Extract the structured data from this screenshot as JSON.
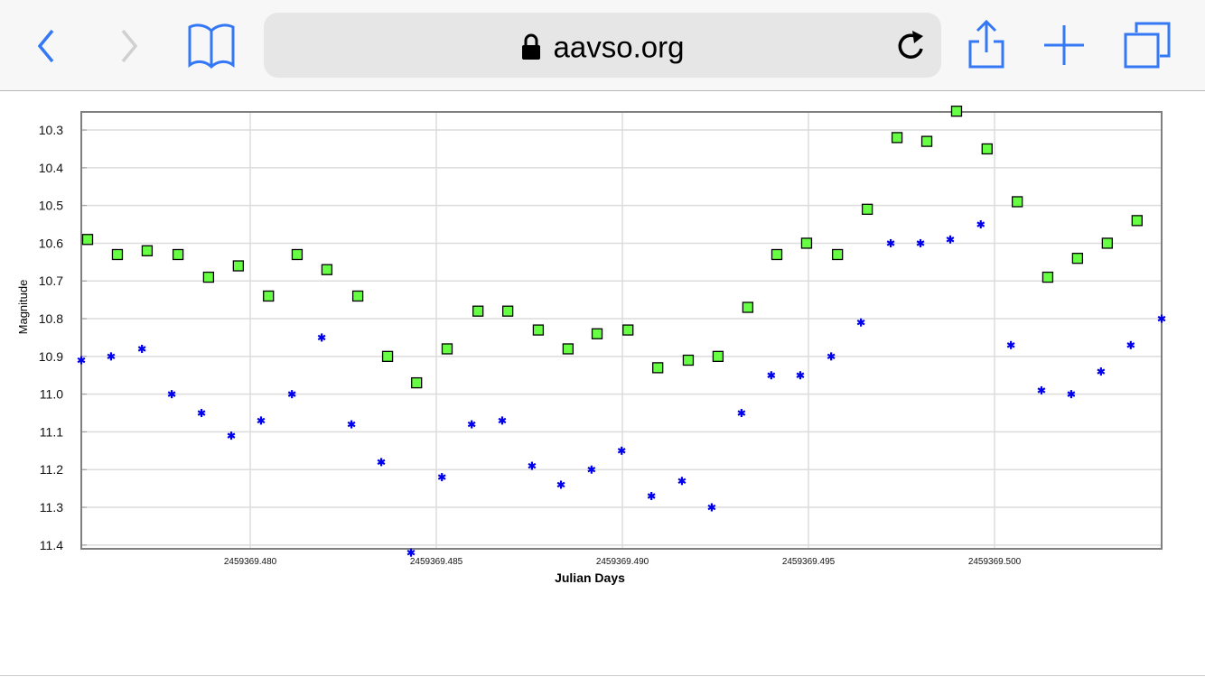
{
  "browser": {
    "url": "aavso.org",
    "icons": [
      "back-icon",
      "forward-icon",
      "bookmarks-icon",
      "lock-icon",
      "reload-icon",
      "share-icon",
      "new-tab-icon",
      "tabs-icon"
    ],
    "accent_color": "#3478f6"
  },
  "chart_data": {
    "type": "scatter",
    "title": "",
    "xlabel": "Julian Days",
    "ylabel": "Magnitude",
    "xlim": [
      2459369.47546,
      2459369.50449
    ],
    "ylim": [
      10.252,
      11.41
    ],
    "y_inverted": true,
    "grid": true,
    "xticks": [
      2459369.48,
      2459369.485,
      2459369.49,
      2459369.495,
      2459369.5
    ],
    "xtick_labels": [
      "2459369.480",
      "2459369.485",
      "2459369.490",
      "2459369.495",
      "2459369.500"
    ],
    "yticks": [
      10.3,
      10.4,
      10.5,
      10.6,
      10.7,
      10.8,
      10.9,
      11.0,
      11.1,
      11.2,
      11.3,
      11.4
    ],
    "ytick_labels": [
      "10.3",
      "10.4",
      "10.5",
      "10.6",
      "10.7",
      "10.8",
      "10.9",
      "11.0",
      "11.1",
      "11.2",
      "11.3",
      "11.4"
    ],
    "series": [
      {
        "marker": "square",
        "color": "#66ff44",
        "x": [
          2459369.47563,
          2459369.47643,
          2459369.47723,
          2459369.47806,
          2459369.47888,
          2459369.47968,
          2459369.48049,
          2459369.48126,
          2459369.48206,
          2459369.48289,
          2459369.48369,
          2459369.48447,
          2459369.48529,
          2459369.48612,
          2459369.48692,
          2459369.48774,
          2459369.48854,
          2459369.48932,
          2459369.49015,
          2459369.49095,
          2459369.49177,
          2459369.49257,
          2459369.49337,
          2459369.49415,
          2459369.49495,
          2459369.49578,
          2459369.49658,
          2459369.49738,
          2459369.49818,
          2459369.49898,
          2459369.4998,
          2459369.50061,
          2459369.50143,
          2459369.50223,
          2459369.50303,
          2459369.50383
        ],
        "y": [
          10.59,
          10.63,
          10.62,
          10.63,
          10.69,
          10.66,
          10.74,
          10.63,
          10.67,
          10.74,
          10.9,
          10.97,
          10.88,
          10.78,
          10.78,
          10.83,
          10.88,
          10.84,
          10.83,
          10.93,
          10.91,
          10.9,
          10.77,
          10.63,
          10.6,
          10.63,
          10.51,
          10.32,
          10.33,
          10.25,
          10.35,
          10.49,
          10.69,
          10.64,
          10.6,
          10.54
        ]
      },
      {
        "marker": "star",
        "color": "#0000ee",
        "x": [
          2459369.47546,
          2459369.47626,
          2459369.47709,
          2459369.47789,
          2459369.47869,
          2459369.47949,
          2459369.48029,
          2459369.48112,
          2459369.48192,
          2459369.48272,
          2459369.48352,
          2459369.48432,
          2459369.48515,
          2459369.48595,
          2459369.48677,
          2459369.48757,
          2459369.48835,
          2459369.48917,
          2459369.48998,
          2459369.49078,
          2459369.4916,
          2459369.4924,
          2459369.4932,
          2459369.494,
          2459369.49478,
          2459369.49561,
          2459369.49641,
          2459369.49721,
          2459369.49801,
          2459369.49881,
          2459369.49963,
          2459369.50044,
          2459369.50126,
          2459369.50206,
          2459369.50286,
          2459369.50366,
          2459369.50449
        ],
        "y": [
          10.91,
          10.9,
          10.88,
          11.0,
          11.05,
          11.11,
          11.07,
          11.0,
          10.85,
          11.08,
          11.18,
          11.42,
          11.22,
          11.08,
          11.07,
          11.19,
          11.24,
          11.2,
          11.15,
          11.27,
          11.23,
          11.3,
          11.05,
          10.95,
          10.95,
          10.9,
          10.81,
          10.6,
          10.6,
          10.59,
          10.55,
          10.87,
          10.99,
          11.0,
          10.94,
          10.87,
          10.8
        ]
      }
    ]
  }
}
